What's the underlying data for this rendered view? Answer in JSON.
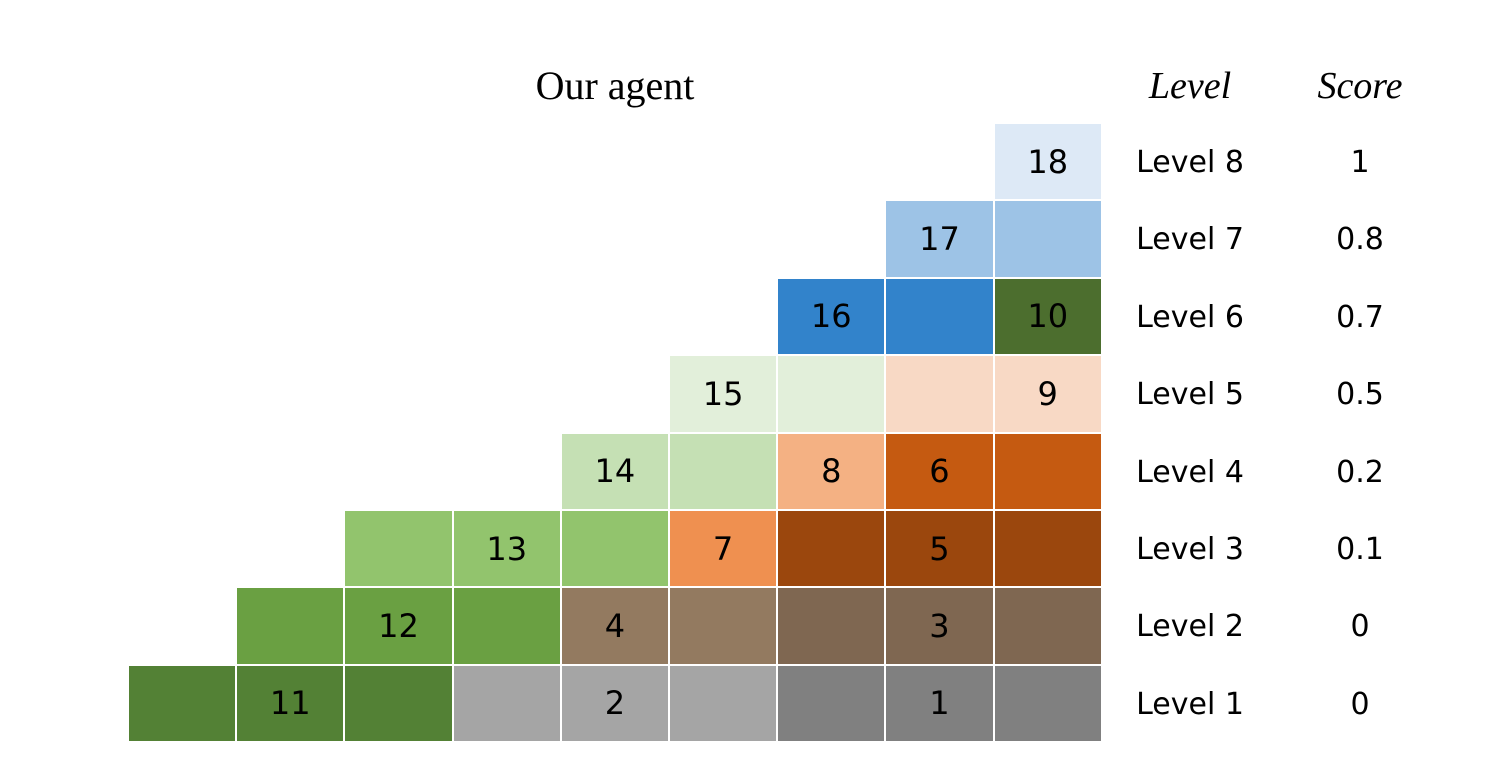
{
  "title": "Our agent",
  "headers": {
    "level": "Level",
    "score": "Score"
  },
  "levels": [
    {
      "label": "Level 8",
      "score": "1"
    },
    {
      "label": "Level 7",
      "score": "0.8"
    },
    {
      "label": "Level 6",
      "score": "0.7"
    },
    {
      "label": "Level 5",
      "score": "0.5"
    },
    {
      "label": "Level 4",
      "score": "0.2"
    },
    {
      "label": "Level 3",
      "score": "0.1"
    },
    {
      "label": "Level 2",
      "score": "0"
    },
    {
      "label": "Level 1",
      "score": "0"
    }
  ],
  "grid": [
    [
      null,
      null,
      null,
      null,
      null,
      null,
      null,
      null,
      {
        "text": "18",
        "color": "#dde9f6"
      }
    ],
    [
      null,
      null,
      null,
      null,
      null,
      null,
      null,
      {
        "text": "17",
        "color": "#9dc3e6"
      },
      {
        "text": "",
        "color": "#9dc3e6"
      }
    ],
    [
      null,
      null,
      null,
      null,
      null,
      null,
      {
        "text": "16",
        "color": "#3283cb"
      },
      {
        "text": "",
        "color": "#3283cb"
      },
      {
        "text": "10",
        "color": "#4c6e2e"
      }
    ],
    [
      null,
      null,
      null,
      null,
      null,
      {
        "text": "15",
        "color": "#e2efda"
      },
      {
        "text": "",
        "color": "#e2efda"
      },
      {
        "text": "",
        "color": "#f8d9c5"
      },
      {
        "text": "9",
        "color": "#f8d9c5"
      }
    ],
    [
      null,
      null,
      null,
      null,
      {
        "text": "14",
        "color": "#c5e0b4"
      },
      {
        "text": "",
        "color": "#c5e0b4"
      },
      {
        "text": "8",
        "color": "#f4b183"
      },
      {
        "text": "6",
        "color": "#c55a11"
      },
      {
        "text": "",
        "color": "#c55a11"
      }
    ],
    [
      null,
      null,
      {
        "text": "",
        "color": "#92c46d"
      },
      {
        "text": "13",
        "color": "#92c46d"
      },
      {
        "text": "",
        "color": "#92c46d"
      },
      {
        "text": "7",
        "color": "#ef9050"
      },
      {
        "text": "",
        "color": "#9b470d"
      },
      {
        "text": "5",
        "color": "#9b470d"
      },
      {
        "text": "",
        "color": "#9b470d"
      }
    ],
    [
      null,
      {
        "text": "",
        "color": "#6aa042"
      },
      {
        "text": "12",
        "color": "#6aa042"
      },
      {
        "text": "",
        "color": "#6aa042"
      },
      {
        "text": "4",
        "color": "#937a60"
      },
      {
        "text": "",
        "color": "#937a60"
      },
      {
        "text": "",
        "color": "#7f6751"
      },
      {
        "text": "3",
        "color": "#7f6751"
      },
      {
        "text": "",
        "color": "#7f6751"
      }
    ],
    [
      {
        "text": "",
        "color": "#538135"
      },
      {
        "text": "11",
        "color": "#538135"
      },
      {
        "text": "",
        "color": "#538135"
      },
      {
        "text": "",
        "color": "#a5a5a5"
      },
      {
        "text": "2",
        "color": "#a5a5a5"
      },
      {
        "text": "",
        "color": "#a5a5a5"
      },
      {
        "text": "",
        "color": "#808080"
      },
      {
        "text": "1",
        "color": "#808080"
      },
      {
        "text": "",
        "color": "#808080"
      }
    ]
  ]
}
